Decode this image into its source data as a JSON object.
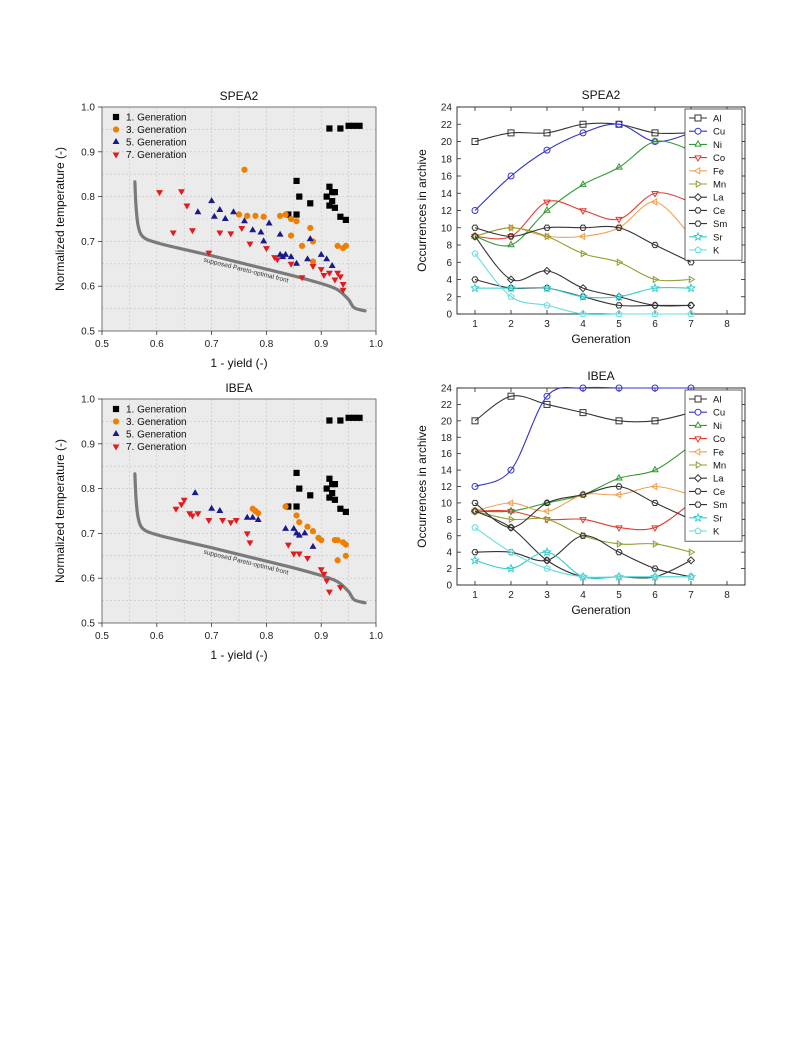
{
  "chart_data": [
    {
      "type": "scatter",
      "title": "SPEA2",
      "xlabel": "1 - yield (-)",
      "ylabel": "Normalized temperature (-)",
      "xlim": [
        0.5,
        1.0
      ],
      "ylim": [
        0.5,
        1.0
      ],
      "xticks": [
        "0.5",
        "0.6",
        "0.7",
        "0.8",
        "0.9",
        "1.0"
      ],
      "yticks": [
        "0.5",
        "0.6",
        "0.7",
        "0.8",
        "0.9",
        "1.0"
      ],
      "grid": true,
      "legend": "top-left",
      "annotation": "supposed Pareto-optimal front",
      "front": {
        "x": [
          0.56,
          0.562,
          0.566,
          0.575,
          0.6,
          0.65,
          0.7,
          0.75,
          0.8,
          0.85,
          0.9,
          0.93,
          0.95,
          0.96,
          0.98
        ],
        "y": [
          0.833,
          0.78,
          0.735,
          0.71,
          0.697,
          0.682,
          0.668,
          0.653,
          0.638,
          0.623,
          0.606,
          0.592,
          0.57,
          0.552,
          0.545
        ]
      },
      "series": [
        {
          "name": "1. Generation",
          "marker": "square",
          "color": "#000000",
          "x": [
            0.915,
            0.935,
            0.95,
            0.96,
            0.97,
            0.855,
            0.86,
            0.915,
            0.92,
            0.925,
            0.915,
            0.925,
            0.935,
            0.945,
            0.84,
            0.855,
            0.88,
            0.91,
            0.92
          ],
          "y": [
            0.952,
            0.952,
            0.958,
            0.958,
            0.958,
            0.835,
            0.8,
            0.822,
            0.81,
            0.81,
            0.78,
            0.775,
            0.755,
            0.748,
            0.76,
            0.76,
            0.785,
            0.8,
            0.79
          ]
        },
        {
          "name": "3. Generation",
          "marker": "circle",
          "color": "#ee7f00",
          "x": [
            0.76,
            0.75,
            0.765,
            0.78,
            0.795,
            0.825,
            0.835,
            0.845,
            0.855,
            0.845,
            0.88,
            0.885,
            0.865,
            0.885,
            0.93,
            0.94,
            0.945
          ],
          "y": [
            0.86,
            0.76,
            0.757,
            0.757,
            0.755,
            0.757,
            0.76,
            0.75,
            0.745,
            0.713,
            0.73,
            0.7,
            0.69,
            0.655,
            0.69,
            0.685,
            0.69
          ]
        },
        {
          "name": "5. Generation",
          "marker": "triangle-up",
          "color": "#1a1a8c",
          "x": [
            0.675,
            0.7,
            0.705,
            0.715,
            0.725,
            0.74,
            0.76,
            0.775,
            0.79,
            0.795,
            0.805,
            0.825,
            0.825,
            0.83,
            0.835,
            0.845,
            0.855,
            0.875,
            0.88,
            0.9,
            0.91,
            0.92
          ],
          "y": [
            0.765,
            0.79,
            0.755,
            0.77,
            0.75,
            0.765,
            0.745,
            0.725,
            0.72,
            0.7,
            0.74,
            0.715,
            0.67,
            0.665,
            0.67,
            0.665,
            0.65,
            0.66,
            0.705,
            0.67,
            0.66,
            0.645
          ]
        },
        {
          "name": "7. Generation",
          "marker": "triangle-down",
          "color": "#e41a1c",
          "x": [
            0.605,
            0.63,
            0.645,
            0.655,
            0.665,
            0.695,
            0.715,
            0.735,
            0.755,
            0.77,
            0.8,
            0.815,
            0.82,
            0.845,
            0.865,
            0.885,
            0.9,
            0.905,
            0.915,
            0.925,
            0.93,
            0.935,
            0.94,
            0.94
          ],
          "y": [
            0.81,
            0.72,
            0.812,
            0.78,
            0.725,
            0.675,
            0.72,
            0.718,
            0.73,
            0.695,
            0.685,
            0.665,
            0.66,
            0.65,
            0.62,
            0.645,
            0.638,
            0.625,
            0.63,
            0.615,
            0.63,
            0.622,
            0.605,
            0.592
          ]
        }
      ]
    },
    {
      "type": "scatter",
      "title": "IBEA",
      "xlabel": "1 - yield (-)",
      "ylabel": "Normalized temperature (-)",
      "xlim": [
        0.5,
        1.0
      ],
      "ylim": [
        0.5,
        1.0
      ],
      "xticks": [
        "0.5",
        "0.6",
        "0.7",
        "0.8",
        "0.9",
        "1.0"
      ],
      "yticks": [
        "0.5",
        "0.6",
        "0.7",
        "0.8",
        "0.9",
        "1.0"
      ],
      "grid": true,
      "legend": "top-left",
      "annotation": "supposed Pareto-optimal front",
      "front": {
        "x": [
          0.56,
          0.562,
          0.566,
          0.575,
          0.6,
          0.65,
          0.7,
          0.75,
          0.8,
          0.85,
          0.9,
          0.93,
          0.95,
          0.96,
          0.98
        ],
        "y": [
          0.833,
          0.78,
          0.735,
          0.71,
          0.697,
          0.682,
          0.668,
          0.653,
          0.638,
          0.623,
          0.606,
          0.592,
          0.57,
          0.552,
          0.545
        ]
      },
      "series": [
        {
          "name": "1. Generation",
          "marker": "square",
          "color": "#000000",
          "x": [
            0.915,
            0.935,
            0.95,
            0.96,
            0.97,
            0.855,
            0.86,
            0.915,
            0.92,
            0.925,
            0.915,
            0.925,
            0.935,
            0.945,
            0.84,
            0.855,
            0.88,
            0.91,
            0.92
          ],
          "y": [
            0.952,
            0.952,
            0.958,
            0.958,
            0.958,
            0.835,
            0.8,
            0.822,
            0.81,
            0.81,
            0.78,
            0.775,
            0.755,
            0.748,
            0.76,
            0.76,
            0.785,
            0.8,
            0.79
          ]
        },
        {
          "name": "3. Generation",
          "marker": "circle",
          "color": "#ee7f00",
          "x": [
            0.775,
            0.78,
            0.785,
            0.835,
            0.855,
            0.86,
            0.875,
            0.885,
            0.895,
            0.9,
            0.925,
            0.93,
            0.94,
            0.945,
            0.93,
            0.945
          ],
          "y": [
            0.755,
            0.75,
            0.745,
            0.76,
            0.74,
            0.725,
            0.715,
            0.705,
            0.69,
            0.685,
            0.685,
            0.685,
            0.68,
            0.675,
            0.64,
            0.65
          ]
        },
        {
          "name": "5. Generation",
          "marker": "triangle-up",
          "color": "#1a1a8c",
          "x": [
            0.67,
            0.7,
            0.715,
            0.765,
            0.775,
            0.785,
            0.835,
            0.85,
            0.855,
            0.86,
            0.87,
            0.885
          ],
          "y": [
            0.79,
            0.755,
            0.75,
            0.735,
            0.735,
            0.73,
            0.71,
            0.71,
            0.7,
            0.695,
            0.7,
            0.67
          ]
        },
        {
          "name": "7. Generation",
          "marker": "triangle-down",
          "color": "#e41a1c",
          "x": [
            0.635,
            0.645,
            0.65,
            0.66,
            0.665,
            0.675,
            0.695,
            0.72,
            0.735,
            0.745,
            0.765,
            0.77,
            0.84,
            0.85,
            0.86,
            0.875,
            0.9,
            0.905,
            0.91,
            0.915,
            0.935
          ],
          "y": [
            0.755,
            0.765,
            0.775,
            0.745,
            0.74,
            0.745,
            0.73,
            0.73,
            0.725,
            0.73,
            0.7,
            0.68,
            0.675,
            0.655,
            0.655,
            0.645,
            0.62,
            0.61,
            0.595,
            0.57,
            0.58
          ]
        }
      ]
    },
    {
      "type": "line",
      "title": "SPEA2",
      "xlabel": "Generation",
      "ylabel": "Occurrences in archive",
      "xlim": [
        0.5,
        8.5
      ],
      "ylim": [
        0,
        24
      ],
      "xticks": [
        "1",
        "2",
        "3",
        "4",
        "5",
        "6",
        "7",
        "8"
      ],
      "yticks": [
        "0",
        "2",
        "4",
        "6",
        "8",
        "10",
        "12",
        "14",
        "16",
        "18",
        "20",
        "22",
        "24"
      ],
      "legend": "right",
      "x": [
        1,
        2,
        3,
        4,
        5,
        6,
        7
      ],
      "series": [
        {
          "name": "Al",
          "marker": "square",
          "color": "#333333",
          "values": [
            20,
            21,
            21,
            22,
            22,
            21,
            21
          ]
        },
        {
          "name": "Cu",
          "marker": "circle",
          "color": "#3333cc",
          "values": [
            12,
            16,
            19,
            21,
            22,
            20,
            21
          ]
        },
        {
          "name": "Ni",
          "marker": "triangle-up",
          "color": "#339933",
          "values": [
            9,
            8,
            12,
            15,
            17,
            20,
            19
          ]
        },
        {
          "name": "Co",
          "marker": "triangle-down",
          "color": "#e03c31",
          "values": [
            9,
            9,
            13,
            12,
            11,
            14,
            13
          ]
        },
        {
          "name": "Fe",
          "marker": "triangle-left",
          "color": "#f0a050",
          "values": [
            9,
            10,
            9,
            9,
            10,
            13,
            9
          ]
        },
        {
          "name": "Mn",
          "marker": "triangle-right",
          "color": "#8fa033",
          "values": [
            9,
            10,
            9,
            7,
            6,
            4,
            4
          ]
        },
        {
          "name": "La",
          "marker": "diamond",
          "color": "#333333",
          "values": [
            9,
            4,
            5,
            3,
            2,
            1,
            1
          ]
        },
        {
          "name": "Ce",
          "marker": "hexagon",
          "color": "#333333",
          "values": [
            10,
            9,
            10,
            10,
            10,
            8,
            6
          ]
        },
        {
          "name": "Sm",
          "marker": "hexagon",
          "color": "#333333",
          "values": [
            4,
            3,
            3,
            2,
            1,
            1,
            1
          ]
        },
        {
          "name": "Sr",
          "marker": "star",
          "color": "#33cccc",
          "values": [
            3,
            3,
            3,
            2,
            2,
            3,
            3
          ]
        },
        {
          "name": "K",
          "marker": "pentagon",
          "color": "#66dddd",
          "values": [
            7,
            2,
            1,
            0,
            0,
            0,
            0
          ]
        }
      ]
    },
    {
      "type": "line",
      "title": "IBEA",
      "xlabel": "Generation",
      "ylabel": "Occurrences in archive",
      "xlim": [
        0.5,
        8.5
      ],
      "ylim": [
        0,
        24
      ],
      "xticks": [
        "1",
        "2",
        "3",
        "4",
        "5",
        "6",
        "7",
        "8"
      ],
      "yticks": [
        "0",
        "2",
        "4",
        "6",
        "8",
        "10",
        "12",
        "14",
        "16",
        "18",
        "20",
        "22",
        "24"
      ],
      "legend": "right",
      "x": [
        1,
        2,
        3,
        4,
        5,
        6,
        7
      ],
      "series": [
        {
          "name": "Al",
          "marker": "square",
          "color": "#333333",
          "values": [
            20,
            23,
            22,
            21,
            20,
            20,
            21
          ]
        },
        {
          "name": "Cu",
          "marker": "circle",
          "color": "#3333cc",
          "values": [
            12,
            14,
            23,
            24,
            24,
            24,
            24
          ]
        },
        {
          "name": "Ni",
          "marker": "triangle-up",
          "color": "#339933",
          "values": [
            9,
            9,
            10,
            11,
            13,
            14,
            17
          ]
        },
        {
          "name": "Co",
          "marker": "triangle-down",
          "color": "#e03c31",
          "values": [
            9,
            9,
            8,
            8,
            7,
            7,
            10
          ]
        },
        {
          "name": "Fe",
          "marker": "triangle-left",
          "color": "#f0a050",
          "values": [
            9,
            10,
            9,
            11,
            11,
            12,
            11
          ]
        },
        {
          "name": "Mn",
          "marker": "triangle-right",
          "color": "#8fa033",
          "values": [
            9,
            8,
            8,
            6,
            5,
            5,
            4
          ]
        },
        {
          "name": "La",
          "marker": "diamond",
          "color": "#333333",
          "values": [
            9,
            7,
            3,
            1,
            1,
            1,
            3
          ]
        },
        {
          "name": "Ce",
          "marker": "hexagon",
          "color": "#333333",
          "values": [
            10,
            7,
            10,
            11,
            12,
            10,
            8
          ]
        },
        {
          "name": "Sm",
          "marker": "hexagon",
          "color": "#333333",
          "values": [
            4,
            4,
            3,
            6,
            4,
            2,
            1
          ]
        },
        {
          "name": "Sr",
          "marker": "star",
          "color": "#33cccc",
          "values": [
            3,
            2,
            4,
            1,
            1,
            1,
            1
          ]
        },
        {
          "name": "K",
          "marker": "pentagon",
          "color": "#66dddd",
          "values": [
            7,
            4,
            2,
            1,
            1,
            1,
            1
          ]
        }
      ]
    }
  ]
}
